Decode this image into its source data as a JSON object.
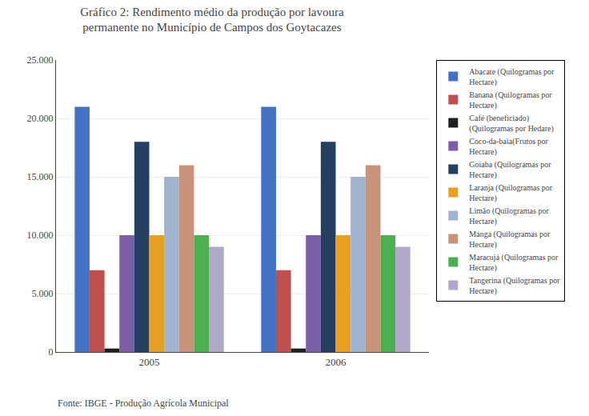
{
  "chart_data": {
    "type": "bar",
    "title": "Gráfico 2: Rendimento médio da produção por lavoura\npermanente no Município de Campos dos Goytacazes",
    "categories": [
      "2005",
      "2006"
    ],
    "series": [
      {
        "name": "Abacate (Quilogramas por\nHectare)",
        "color": "#4472C4",
        "values": [
          21000,
          21000
        ]
      },
      {
        "name": "Banana (Quilogramas por\nHectare)",
        "color": "#C0504D",
        "values": [
          7000,
          7000
        ]
      },
      {
        "name": "Café (beneficiado)\n(Quilogramas por Hedare)",
        "color": "#1F1F1F",
        "values": [
          300,
          300
        ]
      },
      {
        "name": "Coco-da-baia(Frutos por\nHectare)",
        "color": "#7B5EA7",
        "values": [
          10000,
          10000
        ]
      },
      {
        "name": "Goiaba (Quilogramas por\nHectare)",
        "color": "#243F60",
        "values": [
          18000,
          18000
        ]
      },
      {
        "name": "Laranja (Quilogramas por\nHectare)",
        "color": "#E8A020",
        "values": [
          10000,
          10000
        ]
      },
      {
        "name": "Limão (Quilogramas por\nHectare)",
        "color": "#A0B4D0",
        "values": [
          15000,
          15000
        ]
      },
      {
        "name": "Manga (Quilogramas por\nHectare)",
        "color": "#C8937A",
        "values": [
          16000,
          16000
        ]
      },
      {
        "name": "Maracujá (Quilogramas por\nHectare)",
        "color": "#4CAF50",
        "values": [
          10000,
          10000
        ]
      },
      {
        "name": "Tangerina (Quilogramas por\nHectare)",
        "color": "#B0A8C8",
        "values": [
          9000,
          9000
        ]
      }
    ],
    "ylim": [
      0,
      25000
    ],
    "yticks": [
      0,
      {
        "value": 5000,
        "label": "5.000"
      },
      {
        "value": 10000,
        "label": "10.000"
      },
      {
        "value": 15000,
        "label": "15.000"
      },
      {
        "value": 20000,
        "label": "20.000"
      },
      {
        "value": 25000,
        "label": "25.000"
      }
    ],
    "grid": true,
    "legend": "right",
    "annotations": [
      "Fonte: IBGE - Produção Agrícola Municipal"
    ]
  }
}
